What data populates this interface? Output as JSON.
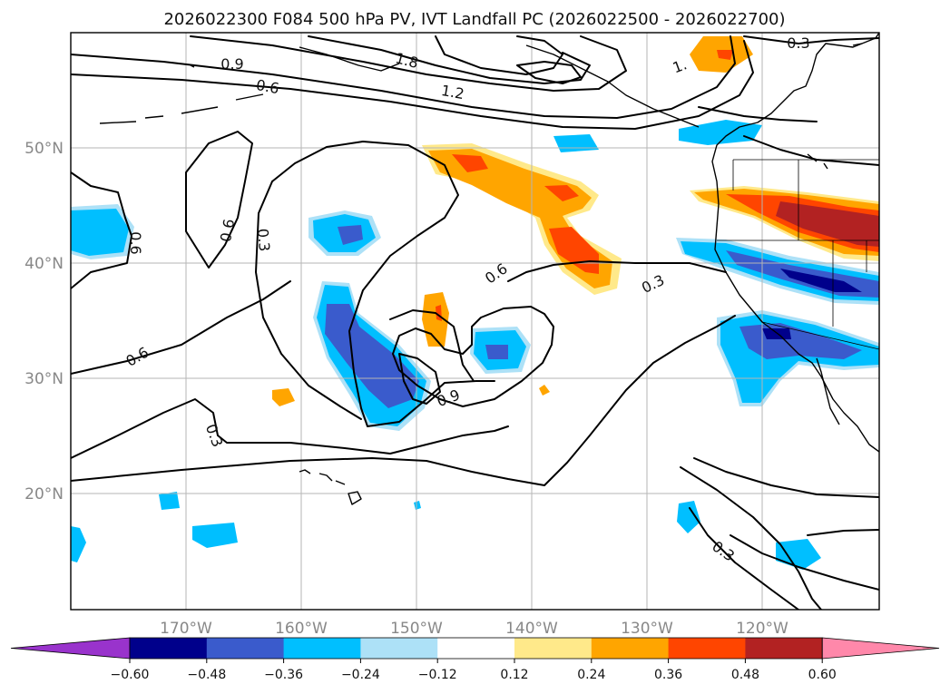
{
  "title": "2026022300 F084 500 hPa PV, IVT Landfall PC (2026022500 - 2026022700)",
  "longitude_labels": [
    "170°W",
    "160°W",
    "150°W",
    "140°W",
    "130°W",
    "120°W"
  ],
  "latitude_labels": [
    "50°N",
    "40°N",
    "30°N",
    "20°N"
  ],
  "colorbar": {
    "tick_labels": [
      "−0.60",
      "−0.48",
      "−0.36",
      "−0.24",
      "−0.12",
      "0.12",
      "0.24",
      "0.36",
      "0.48",
      "0.60"
    ],
    "colors": [
      "#9933cc",
      "#00008b",
      "#3a5bcc",
      "#00bfff",
      "#ade1f7",
      "#ffffff",
      "#ffe98a",
      "#ffa500",
      "#ff4500",
      "#b22222",
      "#ff88aa"
    ]
  },
  "contour_labels": {
    "a": "0.9",
    "b": "0.6",
    "c": "1.8",
    "d": "1.2",
    "e": "1.",
    "f": "0.3",
    "g": "0.6",
    "h": "0.3",
    "i": "0.6",
    "j": "0.6",
    "k": "0.3",
    "l": "0.6",
    "m": "0.3",
    "n": "0.9",
    "o": "0.3",
    "p": "0.3"
  }
}
